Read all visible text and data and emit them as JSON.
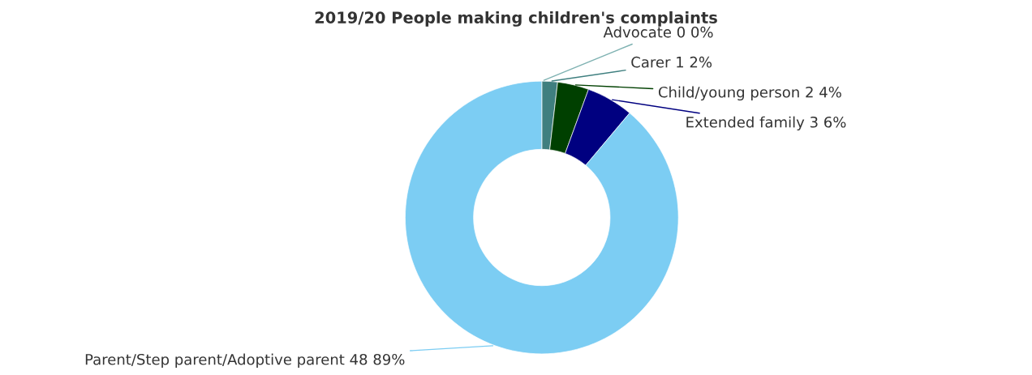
{
  "chart_data": {
    "type": "donut",
    "title": "2019/20 People making children's complaints",
    "categories": [
      "Advocate",
      "Carer",
      "Child/young person",
      "Extended family",
      "Parent/Step parent/Adoptive parent"
    ],
    "values": [
      0,
      1,
      2,
      3,
      48
    ],
    "value_labels": [
      "0 0%",
      "1 2%",
      "2 4%",
      "3 6%",
      "48 89%"
    ],
    "colors": [
      "#7fb2b2",
      "#3f7f7f",
      "#004000",
      "#000080",
      "#7ccdf3"
    ],
    "legend": false
  }
}
